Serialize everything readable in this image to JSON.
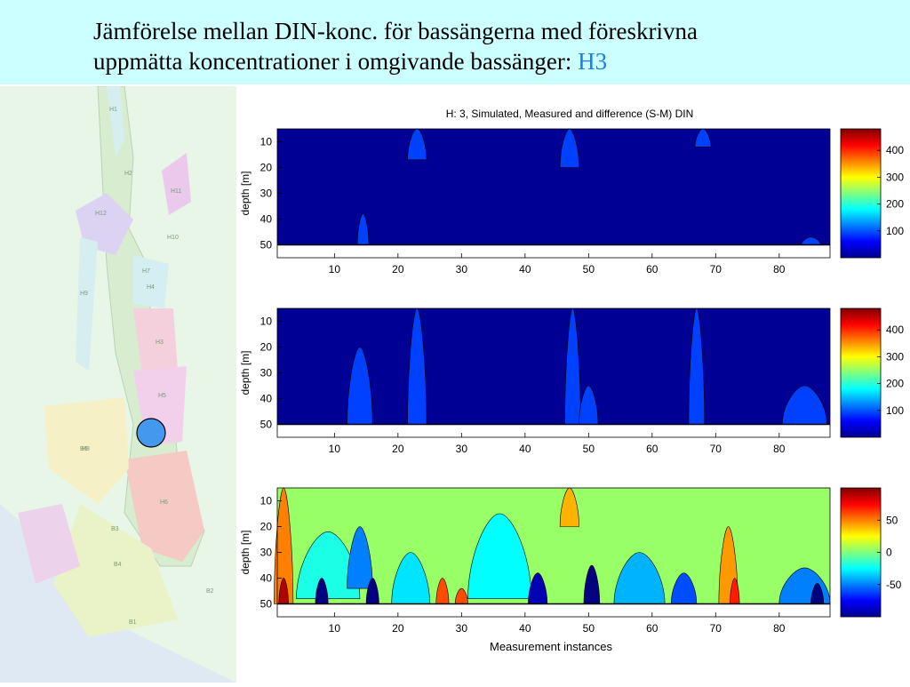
{
  "slide": {
    "title_line1": "Jämförelse mellan DIN-konc. för bassängerna med föreskrivna",
    "title_line2": "uppmätta koncentrationer i omgivande bassänger:",
    "title_highlight": "H3",
    "highlight_color": "#1f7fe0",
    "header_bg": "#ccffff"
  },
  "map": {
    "basin_labels": [
      "H1",
      "H2",
      "H3",
      "H4",
      "H5",
      "H6",
      "H7",
      "H8",
      "H9",
      "H10",
      "H11",
      "H12",
      "B1",
      "B2",
      "B3",
      "B4",
      "B5"
    ],
    "marker_color": "#4499ee"
  },
  "chart_data": [
    {
      "type": "heatmap",
      "title": "H: 3, Simulated, Measured and difference (S-M) DIN",
      "ylabel": "depth [m]",
      "xlabel": "",
      "xticks": [
        10,
        20,
        30,
        40,
        50,
        60,
        70,
        80
      ],
      "yticks": [
        10,
        20,
        30,
        40,
        50
      ],
      "xlim": [
        1,
        88
      ],
      "ylim": [
        5,
        55
      ],
      "colorbar": {
        "ticks": [
          100,
          200,
          300,
          400
        ],
        "range": [
          0,
          480
        ]
      },
      "background_value": 10,
      "patches": [
        {
          "x_center": 23,
          "width": 3,
          "depth_from": 5,
          "depth_to": 17,
          "value": 90
        },
        {
          "x_center": 14.5,
          "width": 1.8,
          "depth_from": 38,
          "depth_to": 50,
          "value": 90
        },
        {
          "x_center": 47,
          "width": 3,
          "depth_from": 5,
          "depth_to": 20,
          "value": 90
        },
        {
          "x_center": 68,
          "width": 2.5,
          "depth_from": 5,
          "depth_to": 12,
          "value": 90
        },
        {
          "x_center": 85,
          "width": 3,
          "depth_from": 47,
          "depth_to": 50,
          "value": 90
        }
      ]
    },
    {
      "type": "heatmap",
      "title": "",
      "ylabel": "depth [m]",
      "xlabel": "",
      "xticks": [
        10,
        20,
        30,
        40,
        50,
        60,
        70,
        80
      ],
      "yticks": [
        10,
        20,
        30,
        40,
        50
      ],
      "xlim": [
        1,
        88
      ],
      "ylim": [
        5,
        55
      ],
      "colorbar": {
        "ticks": [
          100,
          200,
          300,
          400
        ],
        "range": [
          0,
          480
        ]
      },
      "background_value": 10,
      "patches": [
        {
          "x_center": 23,
          "width": 3,
          "depth_from": 5,
          "depth_to": 50,
          "value": 90
        },
        {
          "x_center": 14,
          "width": 4,
          "depth_from": 20,
          "depth_to": 50,
          "value": 90
        },
        {
          "x_center": 47.5,
          "width": 2.5,
          "depth_from": 5,
          "depth_to": 50,
          "value": 90
        },
        {
          "x_center": 50,
          "width": 3,
          "depth_from": 35,
          "depth_to": 50,
          "value": 90
        },
        {
          "x_center": 67,
          "width": 2.5,
          "depth_from": 5,
          "depth_to": 50,
          "value": 90
        },
        {
          "x_center": 84,
          "width": 7,
          "depth_from": 35,
          "depth_to": 50,
          "value": 90
        }
      ]
    },
    {
      "type": "heatmap",
      "title": "",
      "ylabel": "depth [m]",
      "xlabel": "Measurement instances",
      "xticks": [
        10,
        20,
        30,
        40,
        50,
        60,
        70,
        80
      ],
      "yticks": [
        10,
        20,
        30,
        40,
        50
      ],
      "xlim": [
        1,
        88
      ],
      "ylim": [
        5,
        55
      ],
      "colorbar": {
        "ticks": [
          -50,
          0,
          50
        ],
        "range": [
          -100,
          100
        ]
      },
      "background_value": 5,
      "patches": [
        {
          "x_center": 2,
          "width": 3,
          "depth_from": 5,
          "depth_to": 50,
          "value": 50
        },
        {
          "x_center": 2,
          "width": 1.5,
          "depth_from": 40,
          "depth_to": 50,
          "value": 90
        },
        {
          "x_center": 9,
          "width": 10,
          "depth_from": 22,
          "depth_to": 48,
          "value": -20
        },
        {
          "x_center": 14,
          "width": 4,
          "depth_from": 20,
          "depth_to": 44,
          "value": -50
        },
        {
          "x_center": 16,
          "width": 2,
          "depth_from": 40,
          "depth_to": 50,
          "value": -100
        },
        {
          "x_center": 8,
          "width": 2,
          "depth_from": 40,
          "depth_to": 50,
          "value": -100
        },
        {
          "x_center": 22,
          "width": 6,
          "depth_from": 30,
          "depth_to": 50,
          "value": -30
        },
        {
          "x_center": 27,
          "width": 2,
          "depth_from": 40,
          "depth_to": 50,
          "value": 60
        },
        {
          "x_center": 30,
          "width": 2,
          "depth_from": 44,
          "depth_to": 50,
          "value": 60
        },
        {
          "x_center": 36,
          "width": 10,
          "depth_from": 15,
          "depth_to": 48,
          "value": -25
        },
        {
          "x_center": 42,
          "width": 3,
          "depth_from": 38,
          "depth_to": 50,
          "value": -90
        },
        {
          "x_center": 47,
          "width": 3,
          "depth_from": 5,
          "depth_to": 20,
          "value": 40
        },
        {
          "x_center": 50.5,
          "width": 2.5,
          "depth_from": 35,
          "depth_to": 50,
          "value": -100
        },
        {
          "x_center": 58,
          "width": 8,
          "depth_from": 30,
          "depth_to": 50,
          "value": -40
        },
        {
          "x_center": 65,
          "width": 4,
          "depth_from": 38,
          "depth_to": 50,
          "value": -60
        },
        {
          "x_center": 72,
          "width": 3,
          "depth_from": 20,
          "depth_to": 50,
          "value": 45
        },
        {
          "x_center": 73,
          "width": 1.5,
          "depth_from": 40,
          "depth_to": 50,
          "value": 70
        },
        {
          "x_center": 84,
          "width": 8,
          "depth_from": 36,
          "depth_to": 50,
          "value": -50
        },
        {
          "x_center": 86,
          "width": 2,
          "depth_from": 42,
          "depth_to": 50,
          "value": -100
        }
      ]
    }
  ]
}
